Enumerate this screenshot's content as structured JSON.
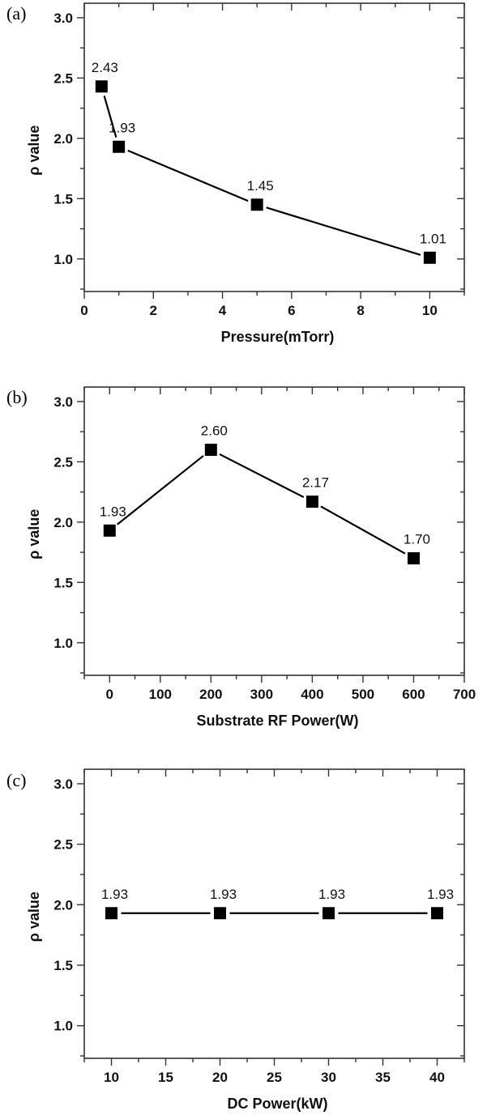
{
  "chart_data": [
    {
      "type": "line",
      "panel_label": "(a)",
      "title": "",
      "xlabel": "Pressure(mTorr)",
      "ylabel": "ρ value",
      "xlim": [
        0,
        11
      ],
      "ylim": [
        0.73,
        3.12
      ],
      "xticks": [
        0,
        2,
        4,
        6,
        8,
        10
      ],
      "xtick_labels": [
        "0",
        "2",
        "4",
        "6",
        "8",
        "10"
      ],
      "yticks": [
        1.0,
        1.5,
        2.0,
        2.5,
        3.0
      ],
      "ytick_labels": [
        "1.0",
        "1.5",
        "2.0",
        "2.5",
        "3.0"
      ],
      "grid": false,
      "series": [
        {
          "name": "ρ value",
          "marker": "square",
          "x": [
            0.5,
            1,
            5,
            10
          ],
          "y": [
            2.43,
            1.93,
            1.45,
            1.01
          ],
          "labels": [
            "2.43",
            "1.93",
            "1.45",
            "1.01"
          ]
        }
      ]
    },
    {
      "type": "line",
      "panel_label": "(b)",
      "title": "",
      "xlabel": "Substrate RF Power(W)",
      "ylabel": "ρ value",
      "xlim": [
        -50,
        700
      ],
      "ylim": [
        0.73,
        3.12
      ],
      "xticks": [
        0,
        100,
        200,
        300,
        400,
        500,
        600,
        700
      ],
      "xtick_labels": [
        "0",
        "100",
        "200",
        "300",
        "400",
        "500",
        "600",
        "700"
      ],
      "yticks": [
        1.0,
        1.5,
        2.0,
        2.5,
        3.0
      ],
      "ytick_labels": [
        "1.0",
        "1.5",
        "2.0",
        "2.5",
        "3.0"
      ],
      "grid": false,
      "series": [
        {
          "name": "ρ value",
          "marker": "square",
          "x": [
            0,
            200,
            400,
            600
          ],
          "y": [
            1.93,
            2.6,
            2.17,
            1.7
          ],
          "labels": [
            "1.93",
            "2.60",
            "2.17",
            "1.70"
          ]
        }
      ]
    },
    {
      "type": "line",
      "panel_label": "(c)",
      "title": "",
      "xlabel": "DC Power(kW)",
      "ylabel": "ρ value",
      "xlim": [
        7.5,
        42.5
      ],
      "ylim": [
        0.73,
        3.12
      ],
      "xticks": [
        10,
        15,
        20,
        25,
        30,
        35,
        40
      ],
      "xtick_labels": [
        "10",
        "15",
        "20",
        "25",
        "30",
        "35",
        "40"
      ],
      "yticks": [
        1.0,
        1.5,
        2.0,
        2.5,
        3.0
      ],
      "ytick_labels": [
        "1.0",
        "1.5",
        "2.0",
        "2.5",
        "3.0"
      ],
      "grid": false,
      "series": [
        {
          "name": "ρ value",
          "marker": "square",
          "x": [
            10,
            20,
            30,
            40
          ],
          "y": [
            1.93,
            1.93,
            1.93,
            1.93
          ],
          "labels": [
            "1.93",
            "1.93",
            "1.93",
            "1.93"
          ]
        }
      ]
    }
  ]
}
